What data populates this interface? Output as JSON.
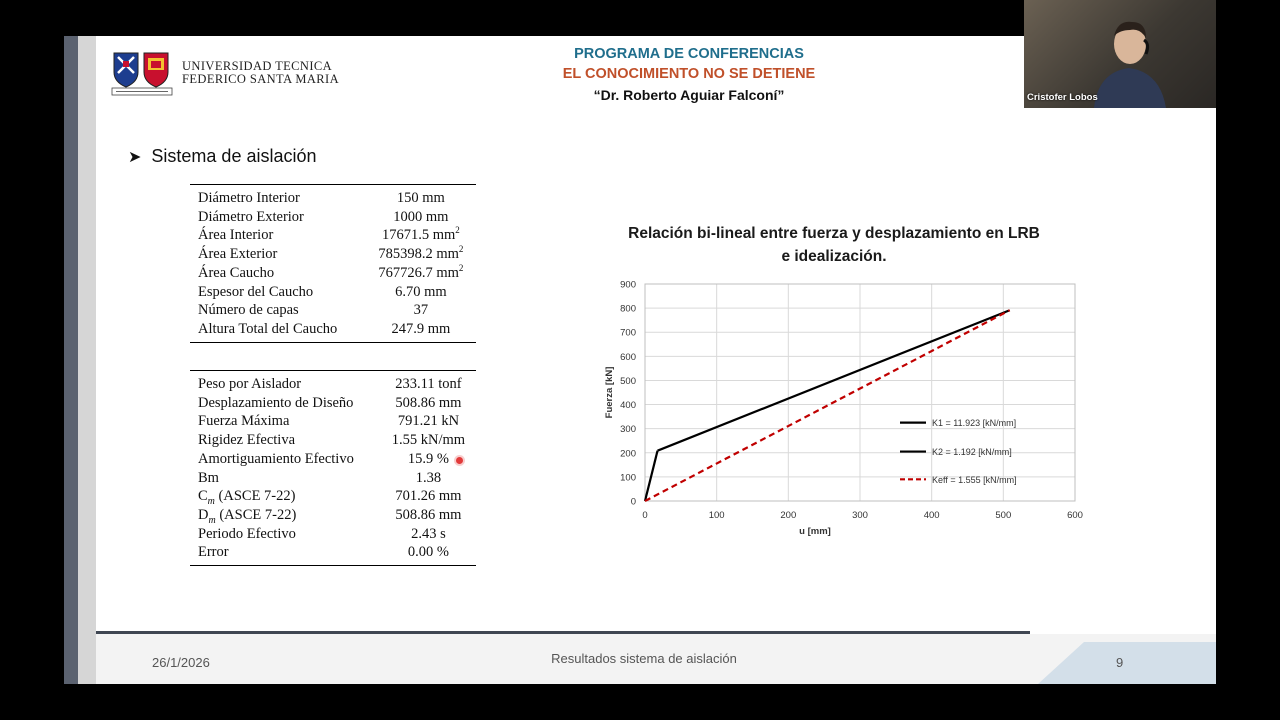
{
  "header": {
    "university_line1": "UNIVERSIDAD TECNICA",
    "university_line2": "FEDERICO SANTA MARIA",
    "program": "PROGRAMA DE CONFERENCIAS",
    "subtitle": "EL CONOCIMIENTO NO SE DETIENE",
    "speaker": "“Dr. Roberto Aguiar Falconí”"
  },
  "section_title": "Sistema de aislación",
  "table1": [
    {
      "label": "Diámetro Interior",
      "value": "150 mm"
    },
    {
      "label": "Diámetro Exterior",
      "value": "1000 mm"
    },
    {
      "label": "Área Interior",
      "value": "17671.5 mm",
      "sup": "2"
    },
    {
      "label": "Área Exterior",
      "value": "785398.2 mm",
      "sup": "2"
    },
    {
      "label": "Área Caucho",
      "value": "767726.7 mm",
      "sup": "2"
    },
    {
      "label": "Espesor del Caucho",
      "value": "6.70 mm"
    },
    {
      "label": "Número de capas",
      "value": "37"
    },
    {
      "label": "Altura Total del Caucho",
      "value": "247.9 mm"
    }
  ],
  "table2": [
    {
      "label": "Peso por Aislador",
      "value": "233.11 tonf"
    },
    {
      "label": "Desplazamiento de Diseño",
      "value": "508.86 mm"
    },
    {
      "label": "Fuerza Máxima",
      "value": "791.21 kN"
    },
    {
      "label": "Rigidez Efectiva",
      "value": "1.55 kN/mm"
    },
    {
      "label": "Amortiguamiento Efectivo",
      "value": "15.9 %"
    },
    {
      "label": "Bm",
      "value": "1.38"
    },
    {
      "label": "C",
      "sub": "m",
      "label_suffix": " (ASCE 7-22)",
      "value": "701.26 mm"
    },
    {
      "label": "D",
      "sub": "m",
      "label_suffix": " (ASCE 7-22)",
      "value": "508.86 mm"
    },
    {
      "label": "Periodo Efectivo",
      "value": "2.43 s"
    },
    {
      "label": "Error",
      "value": "0.00 %"
    }
  ],
  "chart_data": {
    "type": "line",
    "title": "Relación bi-lineal entre fuerza y desplazamiento en LRB e idealización.",
    "xlabel": "u [mm]",
    "ylabel": "Fuerza [kN]",
    "xlim": [
      0,
      600
    ],
    "ylim": [
      0,
      900
    ],
    "xticks": [
      0,
      100,
      200,
      300,
      400,
      500,
      600
    ],
    "yticks": [
      0,
      100,
      200,
      300,
      400,
      500,
      600,
      700,
      800,
      900
    ],
    "grid": true,
    "legend_position": "right",
    "series": [
      {
        "name": "K1 = 11.923 [kN/mm]",
        "color": "#000000",
        "style": "solid",
        "x": [
          0,
          17.5
        ],
        "y": [
          0,
          208.7
        ]
      },
      {
        "name": "K2 = 1.192 [kN/mm]",
        "color": "#000000",
        "style": "solid",
        "x": [
          17.5,
          508.86
        ],
        "y": [
          208.7,
          791.21
        ]
      },
      {
        "name": "Keff = 1.555 [kN/mm]",
        "color": "#c00000",
        "style": "dashed",
        "x": [
          0,
          508.86
        ],
        "y": [
          0,
          791.21
        ]
      }
    ]
  },
  "footer": {
    "date": "26/1/2026",
    "center": "Resultados sistema de aislación",
    "page": "9"
  },
  "video": {
    "participant_name": "Cristofer Lobos"
  }
}
